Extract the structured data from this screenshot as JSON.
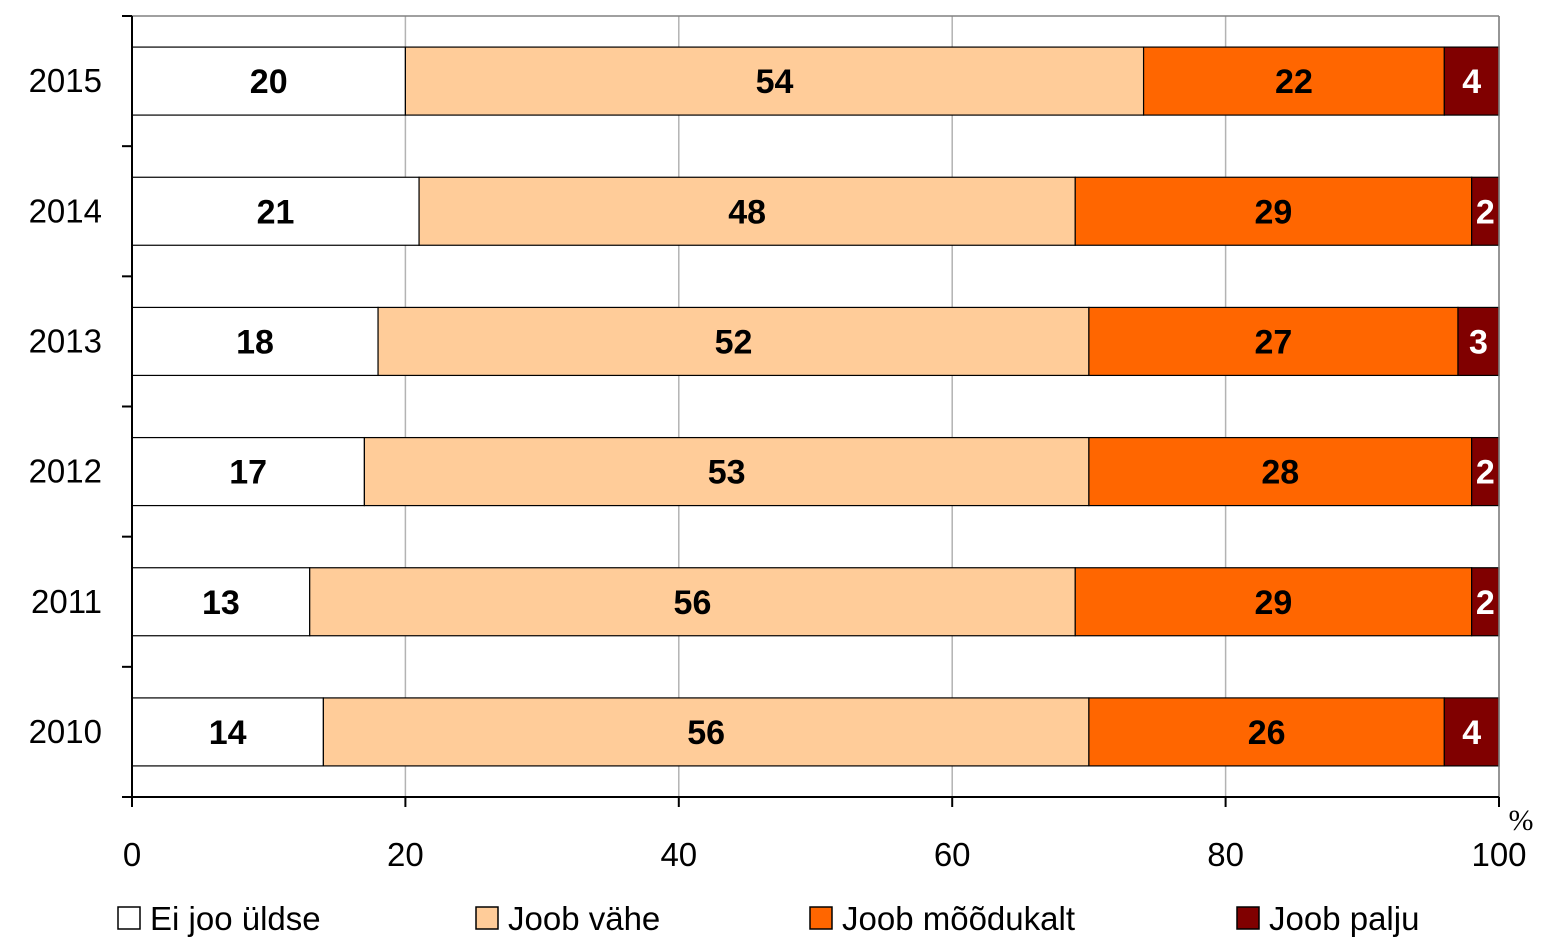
{
  "chart_data": {
    "type": "bar",
    "orientation": "horizontal",
    "stacked": true,
    "categories": [
      "2015",
      "2014",
      "2013",
      "2012",
      "2011",
      "2010"
    ],
    "series": [
      {
        "name": "Ei joo üldse",
        "color": "#ffffff",
        "label_color": "#000000",
        "values": [
          20,
          21,
          18,
          17,
          13,
          14
        ]
      },
      {
        "name": "Joob vähe",
        "color": "#ffcc99",
        "label_color": "#000000",
        "values": [
          54,
          48,
          52,
          53,
          56,
          56
        ]
      },
      {
        "name": "Joob mõõdukalt",
        "color": "#ff6600",
        "label_color": "#000000",
        "values": [
          22,
          29,
          27,
          28,
          29,
          26
        ]
      },
      {
        "name": "Joob palju",
        "color": "#800000",
        "label_color": "#ffffff",
        "values": [
          4,
          2,
          3,
          2,
          2,
          4
        ]
      }
    ],
    "xlim": [
      0,
      100
    ],
    "xticks": [
      "0",
      "20",
      "40",
      "60",
      "80",
      "100"
    ],
    "x_unit": "%",
    "grid": "vertical",
    "legend_position": "bottom"
  }
}
